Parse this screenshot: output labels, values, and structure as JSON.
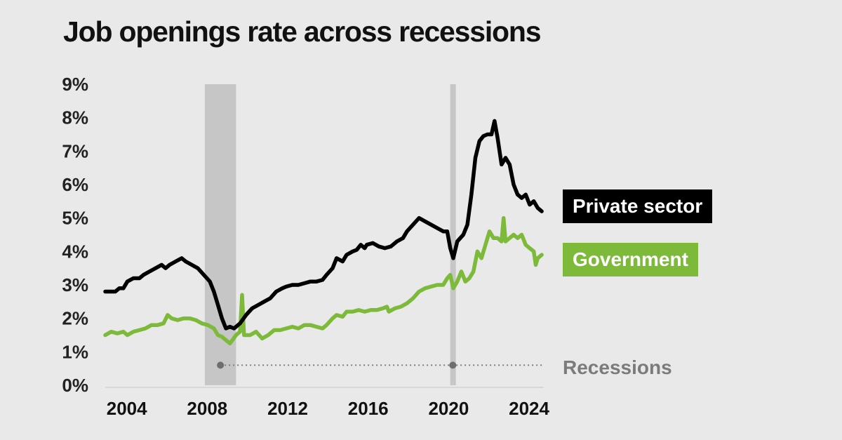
{
  "title": "Job openings rate across recessions",
  "chart_data": {
    "type": "line",
    "title": "Job openings rate across recessions",
    "xlabel": "",
    "ylabel": "",
    "xlim": [
      2003.0,
      2024.8
    ],
    "ylim": [
      0,
      9
    ],
    "yticks": [
      "0%",
      "1%",
      "2%",
      "3%",
      "4%",
      "5%",
      "6%",
      "7%",
      "8%",
      "9%"
    ],
    "xticks": [
      "2004",
      "2008",
      "2012",
      "2016",
      "2020",
      "2024"
    ],
    "recessions": [
      [
        2007.95,
        2009.5
      ],
      [
        2020.15,
        2020.4
      ]
    ],
    "recession_label": "Recessions",
    "series": [
      {
        "name": "Private sector",
        "color": "#000000",
        "x": [
          2003.0,
          2003.3,
          2003.5,
          2003.7,
          2003.9,
          2004.1,
          2004.4,
          2004.7,
          2004.9,
          2005.2,
          2005.5,
          2005.8,
          2006.0,
          2006.2,
          2006.5,
          2006.8,
          2007.0,
          2007.3,
          2007.6,
          2007.9,
          2008.2,
          2008.4,
          2008.6,
          2008.8,
          2009.0,
          2009.2,
          2009.4,
          2009.7,
          2010.0,
          2010.3,
          2010.6,
          2010.9,
          2011.2,
          2011.5,
          2011.8,
          2012.0,
          2012.3,
          2012.6,
          2012.9,
          2013.2,
          2013.5,
          2013.8,
          2014.0,
          2014.3,
          2014.5,
          2014.8,
          2015.0,
          2015.3,
          2015.5,
          2015.7,
          2015.9,
          2016.0,
          2016.3,
          2016.6,
          2016.9,
          2017.2,
          2017.5,
          2017.8,
          2018.0,
          2018.3,
          2018.6,
          2018.9,
          2019.2,
          2019.5,
          2019.8,
          2020.0,
          2020.15,
          2020.3,
          2020.5,
          2020.8,
          2021.0,
          2021.2,
          2021.4,
          2021.6,
          2021.8,
          2022.0,
          2022.2,
          2022.35,
          2022.5,
          2022.7,
          2022.9,
          2023.1,
          2023.3,
          2023.5,
          2023.7,
          2023.9,
          2024.1,
          2024.3,
          2024.5,
          2024.7
        ],
        "values": [
          2.8,
          2.8,
          2.8,
          2.9,
          2.9,
          3.1,
          3.2,
          3.2,
          3.3,
          3.4,
          3.5,
          3.6,
          3.5,
          3.6,
          3.7,
          3.8,
          3.7,
          3.6,
          3.5,
          3.3,
          3.1,
          2.8,
          2.4,
          2.0,
          1.7,
          1.75,
          1.7,
          1.85,
          2.1,
          2.3,
          2.4,
          2.5,
          2.6,
          2.8,
          2.9,
          2.95,
          3.0,
          3.0,
          3.05,
          3.1,
          3.1,
          3.15,
          3.3,
          3.5,
          3.8,
          3.7,
          3.9,
          4.0,
          4.05,
          4.2,
          4.1,
          4.2,
          4.25,
          4.15,
          4.1,
          4.15,
          4.3,
          4.4,
          4.6,
          4.8,
          5.0,
          4.9,
          4.8,
          4.7,
          4.6,
          4.6,
          4.1,
          3.8,
          4.3,
          4.5,
          4.8,
          5.7,
          6.8,
          7.3,
          7.45,
          7.5,
          7.5,
          7.9,
          7.4,
          6.6,
          6.8,
          6.6,
          6.0,
          5.7,
          5.6,
          5.7,
          5.4,
          5.5,
          5.3,
          5.2
        ]
      },
      {
        "name": "Government",
        "color": "#7dba3a",
        "x": [
          2003.0,
          2003.3,
          2003.6,
          2003.9,
          2004.1,
          2004.4,
          2004.7,
          2005.0,
          2005.3,
          2005.6,
          2005.9,
          2006.1,
          2006.3,
          2006.6,
          2006.9,
          2007.2,
          2007.5,
          2007.8,
          2008.1,
          2008.4,
          2008.6,
          2008.8,
          2009.0,
          2009.2,
          2009.5,
          2009.7,
          2009.8,
          2009.9,
          2010.2,
          2010.5,
          2010.8,
          2011.1,
          2011.4,
          2011.7,
          2012.0,
          2012.3,
          2012.6,
          2012.9,
          2013.2,
          2013.5,
          2013.8,
          2014.0,
          2014.3,
          2014.5,
          2014.8,
          2015.0,
          2015.3,
          2015.6,
          2015.9,
          2016.2,
          2016.5,
          2016.8,
          2017.0,
          2017.1,
          2017.4,
          2017.7,
          2018.0,
          2018.3,
          2018.6,
          2018.9,
          2019.2,
          2019.5,
          2019.8,
          2020.0,
          2020.15,
          2020.3,
          2020.5,
          2020.7,
          2020.9,
          2021.1,
          2021.3,
          2021.5,
          2021.7,
          2021.9,
          2022.1,
          2022.3,
          2022.5,
          2022.7,
          2022.8,
          2022.9,
          2023.1,
          2023.3,
          2023.5,
          2023.7,
          2023.9,
          2024.1,
          2024.3,
          2024.4,
          2024.5,
          2024.7
        ],
        "values": [
          1.5,
          1.6,
          1.55,
          1.6,
          1.5,
          1.6,
          1.65,
          1.7,
          1.8,
          1.8,
          1.85,
          2.1,
          2.0,
          1.95,
          2.0,
          2.0,
          1.95,
          1.85,
          1.8,
          1.7,
          1.5,
          1.45,
          1.35,
          1.25,
          1.5,
          1.6,
          2.7,
          1.5,
          1.5,
          1.6,
          1.4,
          1.5,
          1.65,
          1.65,
          1.7,
          1.75,
          1.7,
          1.8,
          1.8,
          1.75,
          1.7,
          1.8,
          2.0,
          2.1,
          2.05,
          2.2,
          2.2,
          2.25,
          2.2,
          2.25,
          2.25,
          2.3,
          2.35,
          2.2,
          2.3,
          2.35,
          2.45,
          2.6,
          2.8,
          2.9,
          2.95,
          3.0,
          3.0,
          3.2,
          3.3,
          2.9,
          3.1,
          3.4,
          3.1,
          3.2,
          3.4,
          4.0,
          3.8,
          4.2,
          4.6,
          4.4,
          4.4,
          4.3,
          5.0,
          4.3,
          4.4,
          4.5,
          4.4,
          4.5,
          4.2,
          4.1,
          4.0,
          3.6,
          3.8,
          3.9
        ]
      }
    ]
  }
}
